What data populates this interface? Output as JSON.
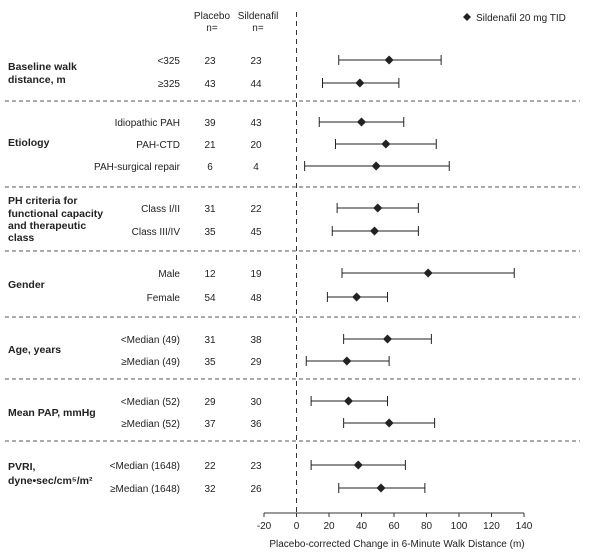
{
  "headers": {
    "placebo": "Placebo",
    "placebo_n": "n=",
    "sildenafil": "Sildenafil",
    "sildenafil_n": "n="
  },
  "legend": {
    "label": "Sildenafil 20 mg TID",
    "marker": "diamond"
  },
  "colors": {
    "marker": "#222222",
    "line": "#222222",
    "divider": "#555555"
  },
  "chart_data": {
    "type": "forest",
    "xlabel": "Placebo-corrected Change in 6-Minute Walk Distance (m)",
    "xlim": [
      -20,
      140
    ],
    "xticks": [
      -20,
      0,
      20,
      40,
      60,
      80,
      100,
      120,
      140
    ],
    "reference_line": 0,
    "legend_placement": "top-right",
    "groups": [
      {
        "name": [
          "Baseline walk",
          "distance, m"
        ],
        "rows": [
          {
            "label": "<325",
            "placebo_n": 23,
            "sildenafil_n": 23,
            "est": 57,
            "lo": 26,
            "hi": 89
          },
          {
            "label": "≥325",
            "placebo_n": 43,
            "sildenafil_n": 44,
            "est": 39,
            "lo": 16,
            "hi": 63
          }
        ]
      },
      {
        "name": [
          "Etiology"
        ],
        "rows": [
          {
            "label": "Idiopathic PAH",
            "placebo_n": 39,
            "sildenafil_n": 43,
            "est": 40,
            "lo": 14,
            "hi": 66
          },
          {
            "label": "PAH-CTD",
            "placebo_n": 21,
            "sildenafil_n": 20,
            "est": 55,
            "lo": 24,
            "hi": 86
          },
          {
            "label": "PAH-surgical repair",
            "placebo_n": 6,
            "sildenafil_n": 4,
            "est": 49,
            "lo": 5,
            "hi": 94
          }
        ]
      },
      {
        "name": [
          "PH criteria for",
          "functional capacity",
          "and therapeutic",
          "class"
        ],
        "rows": [
          {
            "label": "Class I/II",
            "placebo_n": 31,
            "sildenafil_n": 22,
            "est": 50,
            "lo": 25,
            "hi": 75
          },
          {
            "label": "Class III/IV",
            "placebo_n": 35,
            "sildenafil_n": 45,
            "est": 48,
            "lo": 22,
            "hi": 75
          }
        ]
      },
      {
        "name": [
          "Gender"
        ],
        "rows": [
          {
            "label": "Male",
            "placebo_n": 12,
            "sildenafil_n": 19,
            "est": 81,
            "lo": 28,
            "hi": 134
          },
          {
            "label": "Female",
            "placebo_n": 54,
            "sildenafil_n": 48,
            "est": 37,
            "lo": 19,
            "hi": 56
          }
        ]
      },
      {
        "name": [
          "Age, years"
        ],
        "rows": [
          {
            "label": "<Median (49)",
            "placebo_n": 31,
            "sildenafil_n": 38,
            "est": 56,
            "lo": 29,
            "hi": 83
          },
          {
            "label": "≥Median (49)",
            "placebo_n": 35,
            "sildenafil_n": 29,
            "est": 31,
            "lo": 6,
            "hi": 57
          }
        ]
      },
      {
        "name": [
          "Mean PAP, mmHg"
        ],
        "rows": [
          {
            "label": "<Median (52)",
            "placebo_n": 29,
            "sildenafil_n": 30,
            "est": 32,
            "lo": 9,
            "hi": 56
          },
          {
            "label": "≥Median (52)",
            "placebo_n": 37,
            "sildenafil_n": 36,
            "est": 57,
            "lo": 29,
            "hi": 85
          }
        ]
      },
      {
        "name": [
          "PVRI,",
          "dyne•sec/cm⁵/m²"
        ],
        "rows": [
          {
            "label": "<Median (1648)",
            "placebo_n": 22,
            "sildenafil_n": 23,
            "est": 38,
            "lo": 9,
            "hi": 67
          },
          {
            "label": "≥Median (1648)",
            "placebo_n": 32,
            "sildenafil_n": 26,
            "est": 52,
            "lo": 26,
            "hi": 79
          }
        ]
      }
    ]
  }
}
